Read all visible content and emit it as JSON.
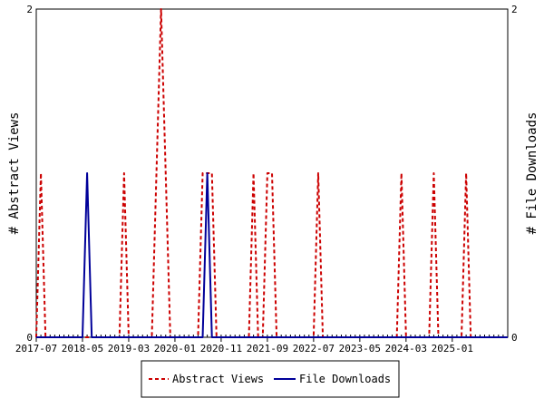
{
  "chart_data": {
    "type": "line",
    "x_tick_labels": [
      "2017-07",
      "2018-05",
      "2019-03",
      "2020-01",
      "2020-11",
      "2021-09",
      "2022-07",
      "2023-05",
      "2024-03",
      "2025-01"
    ],
    "x_range": [
      "2017-07",
      "2026-01"
    ],
    "y_left": {
      "label": "# Abstract Views",
      "range": [
        0,
        2
      ],
      "ticks": [
        "0",
        "2"
      ]
    },
    "y_right": {
      "label": "# File Downloads",
      "range": [
        0,
        2
      ],
      "ticks": [
        "0",
        "2"
      ]
    },
    "legend_position": "bottom-center",
    "grid": false,
    "series": [
      {
        "name": "Abstract Views",
        "axis": "left",
        "color": "#cc0000",
        "style": "dashed",
        "points": [
          [
            "2017-07",
            0
          ],
          [
            "2017-08",
            1
          ],
          [
            "2017-09",
            0
          ],
          [
            "2019-01",
            0
          ],
          [
            "2019-02",
            1
          ],
          [
            "2019-03",
            0
          ],
          [
            "2019-08",
            0
          ],
          [
            "2019-09",
            1
          ],
          [
            "2019-10",
            2
          ],
          [
            "2019-11",
            1
          ],
          [
            "2019-12",
            0
          ],
          [
            "2020-06",
            0
          ],
          [
            "2020-07",
            1
          ],
          [
            "2020-08",
            1
          ],
          [
            "2020-09",
            1
          ],
          [
            "2020-10",
            0
          ],
          [
            "2021-05",
            0
          ],
          [
            "2021-06",
            1
          ],
          [
            "2021-07",
            0
          ],
          [
            "2021-08",
            0
          ],
          [
            "2021-09",
            1
          ],
          [
            "2021-10",
            1
          ],
          [
            "2021-11",
            0
          ],
          [
            "2022-07",
            0
          ],
          [
            "2022-08",
            1
          ],
          [
            "2022-09",
            0
          ],
          [
            "2024-01",
            0
          ],
          [
            "2024-02",
            1
          ],
          [
            "2024-03",
            0
          ],
          [
            "2024-08",
            0
          ],
          [
            "2024-09",
            1
          ],
          [
            "2024-10",
            0
          ],
          [
            "2025-03",
            0
          ],
          [
            "2025-04",
            1
          ],
          [
            "2025-05",
            0
          ]
        ]
      },
      {
        "name": "File Downloads",
        "axis": "right",
        "color": "#000099",
        "style": "solid",
        "points": [
          [
            "2018-05",
            0
          ],
          [
            "2018-06",
            1
          ],
          [
            "2018-07",
            0
          ],
          [
            "2020-07",
            0
          ],
          [
            "2020-08",
            1
          ],
          [
            "2020-09",
            0
          ]
        ]
      }
    ]
  }
}
